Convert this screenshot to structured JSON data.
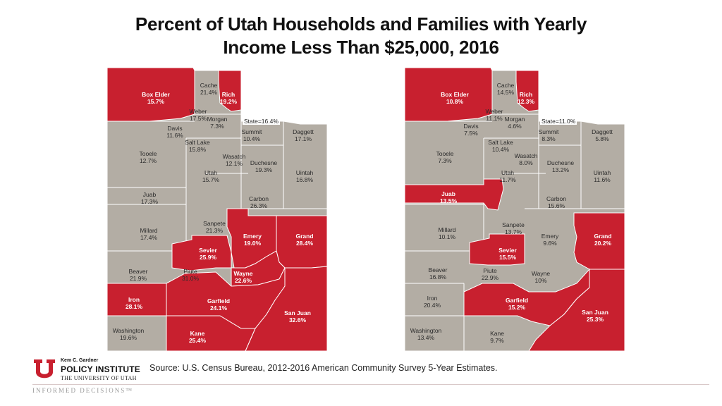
{
  "title_line1": "Percent of Utah Households and Families with Yearly",
  "title_line2": "Income Less Than $25,000, 2016",
  "colors": {
    "highlight": "#c8202f",
    "base": "#b3ada4",
    "border": "#ffffff"
  },
  "maps": [
    {
      "state_label": "State=16.4%",
      "counties": [
        {
          "name": "Box Elder",
          "value": "15.7%",
          "highlight": true
        },
        {
          "name": "Cache",
          "value": "21.4%",
          "highlight": false
        },
        {
          "name": "Rich",
          "value": "19.2%",
          "highlight": true
        },
        {
          "name": "Weber",
          "value": "17.5%",
          "highlight": false
        },
        {
          "name": "Morgan",
          "value": "7.3%",
          "highlight": false
        },
        {
          "name": "Davis",
          "value": "11.6%",
          "highlight": false
        },
        {
          "name": "Summit",
          "value": "10.4%",
          "highlight": false
        },
        {
          "name": "Daggett",
          "value": "17.1%",
          "highlight": false
        },
        {
          "name": "Tooele",
          "value": "12.7%",
          "highlight": false
        },
        {
          "name": "Salt Lake",
          "value": "15.8%",
          "highlight": false
        },
        {
          "name": "Wasatch",
          "value": "12.1%",
          "highlight": false
        },
        {
          "name": "Duchesne",
          "value": "19.3%",
          "highlight": false
        },
        {
          "name": "Utah",
          "value": "15.7%",
          "highlight": false
        },
        {
          "name": "Uintah",
          "value": "16.8%",
          "highlight": false
        },
        {
          "name": "Juab",
          "value": "17.3%",
          "highlight": false
        },
        {
          "name": "Carbon",
          "value": "26.3%",
          "highlight": false
        },
        {
          "name": "Millard",
          "value": "17.4%",
          "highlight": false
        },
        {
          "name": "Sanpete",
          "value": "21.3%",
          "highlight": false
        },
        {
          "name": "Emery",
          "value": "19.0%",
          "highlight": true
        },
        {
          "name": "Grand",
          "value": "28.4%",
          "highlight": true
        },
        {
          "name": "Sevier",
          "value": "25.9%",
          "highlight": true
        },
        {
          "name": "Beaver",
          "value": "21.9%",
          "highlight": false
        },
        {
          "name": "Piute",
          "value": "31.0%",
          "highlight": false
        },
        {
          "name": "Wayne",
          "value": "22.6%",
          "highlight": true
        },
        {
          "name": "Iron",
          "value": "28.1%",
          "highlight": true
        },
        {
          "name": "Garfield",
          "value": "24.1%",
          "highlight": true
        },
        {
          "name": "San Juan",
          "value": "32.6%",
          "highlight": true
        },
        {
          "name": "Washington",
          "value": "19.6%",
          "highlight": false
        },
        {
          "name": "Kane",
          "value": "25.4%",
          "highlight": true
        }
      ]
    },
    {
      "state_label": "State=11.0%",
      "counties": [
        {
          "name": "Box Elder",
          "value": "10.8%",
          "highlight": true
        },
        {
          "name": "Cache",
          "value": "14.5%",
          "highlight": false
        },
        {
          "name": "Rich",
          "value": "12.3%",
          "highlight": true
        },
        {
          "name": "Weber",
          "value": "11.1%",
          "highlight": false
        },
        {
          "name": "Morgan",
          "value": "4.6%",
          "highlight": false
        },
        {
          "name": "Davis",
          "value": "7.5%",
          "highlight": false
        },
        {
          "name": "Summit",
          "value": "8.3%",
          "highlight": false
        },
        {
          "name": "Daggett",
          "value": "5.8%",
          "highlight": false
        },
        {
          "name": "Tooele",
          "value": "7.3%",
          "highlight": false
        },
        {
          "name": "Salt Lake",
          "value": "10.4%",
          "highlight": false
        },
        {
          "name": "Wasatch",
          "value": "8.0%",
          "highlight": false
        },
        {
          "name": "Duchesne",
          "value": "13.2%",
          "highlight": false
        },
        {
          "name": "Utah",
          "value": "11.7%",
          "highlight": false
        },
        {
          "name": "Uintah",
          "value": "11.6%",
          "highlight": false
        },
        {
          "name": "Juab",
          "value": "13.5%",
          "highlight": true
        },
        {
          "name": "Carbon",
          "value": "15.6%",
          "highlight": false
        },
        {
          "name": "Millard",
          "value": "10.1%",
          "highlight": false
        },
        {
          "name": "Sanpete",
          "value": "13.7%",
          "highlight": false
        },
        {
          "name": "Emery",
          "value": "9.6%",
          "highlight": false
        },
        {
          "name": "Grand",
          "value": "20.2%",
          "highlight": true
        },
        {
          "name": "Sevier",
          "value": "15.5%",
          "highlight": true
        },
        {
          "name": "Beaver",
          "value": "16.8%",
          "highlight": false
        },
        {
          "name": "Piute",
          "value": "22.9%",
          "highlight": false
        },
        {
          "name": "Wayne",
          "value": "10%",
          "highlight": false
        },
        {
          "name": "Iron",
          "value": "20.4%",
          "highlight": false
        },
        {
          "name": "Garfield",
          "value": "15.2%",
          "highlight": true
        },
        {
          "name": "San Juan",
          "value": "25.3%",
          "highlight": true
        },
        {
          "name": "Washington",
          "value": "13.4%",
          "highlight": false
        },
        {
          "name": "Kane",
          "value": "9.7%",
          "highlight": false
        }
      ]
    }
  ],
  "logo": {
    "small": "Kem C. Gardner",
    "main": "POLICY INSTITUTE",
    "sub": "THE UNIVERSITY OF UTAH"
  },
  "source": "Source: U.S. Census Bureau, 2012-2016 American Community Survey 5-Year Estimates.",
  "tagline": "INFORMED DECISIONS™"
}
